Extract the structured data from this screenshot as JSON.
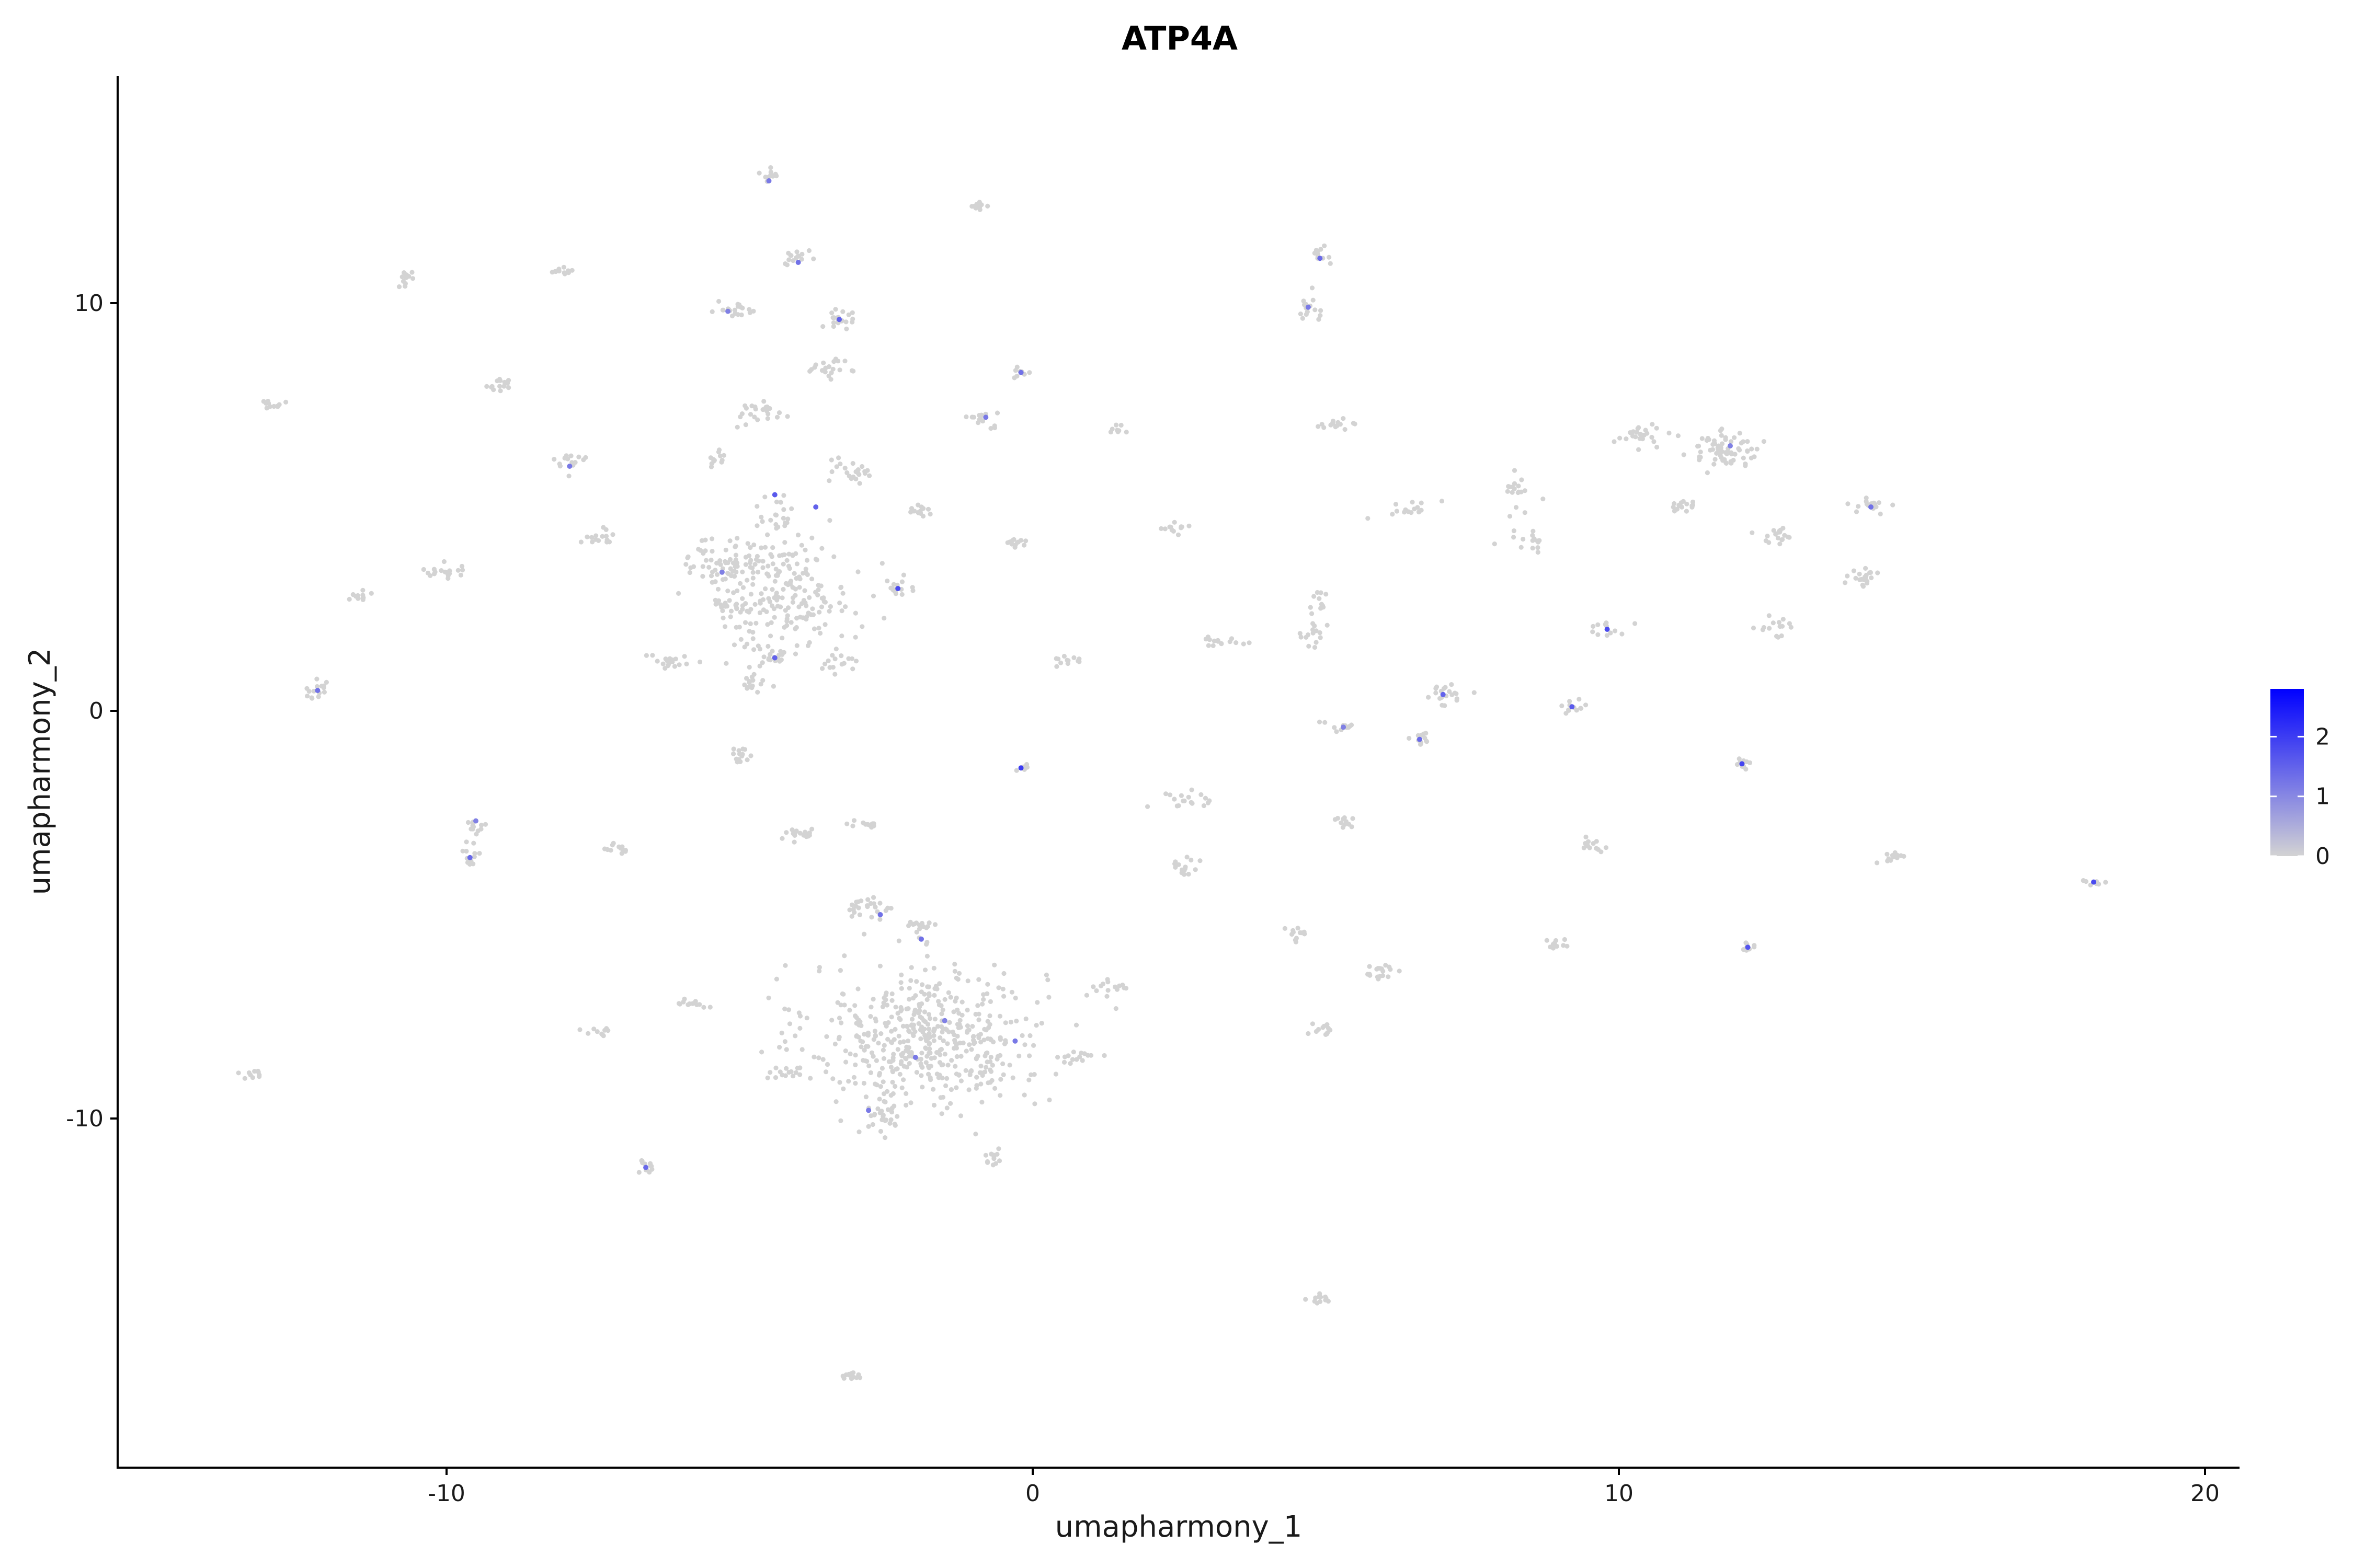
{
  "chart_data": {
    "type": "scatter",
    "title": "ATP4A",
    "xlabel": "umapharmony_1",
    "ylabel": "umapharmony_2",
    "xlim": [
      -15.5,
      20.7
    ],
    "ylim": [
      -18.6,
      15.5
    ],
    "x_ticks": [
      -10,
      0,
      10,
      20
    ],
    "x_tick_labels": [
      "-10",
      "0",
      "10",
      "20"
    ],
    "y_ticks": [
      10,
      0,
      -10
    ],
    "y_tick_labels": [
      "10",
      "0",
      "-10"
    ],
    "grid": false,
    "legend_placement": "right",
    "colorbar": {
      "min": 0,
      "max": 2.8,
      "ticks": [
        0,
        1,
        2
      ],
      "tick_labels": [
        "0",
        "1",
        "2"
      ],
      "low_color": "#d3d3d3",
      "high_color": "#0000ff"
    },
    "clusters": [
      {
        "x": -1.8,
        "y": -8.0,
        "sx": 1.0,
        "sy": 0.9,
        "n": 500
      },
      {
        "x": -4.3,
        "y": 2.9,
        "sx": 0.6,
        "sy": 0.7,
        "n": 220
      },
      {
        "x": -5.3,
        "y": 3.7,
        "sx": 0.3,
        "sy": 0.3,
        "n": 50
      },
      {
        "x": 11.8,
        "y": 6.4,
        "sx": 0.3,
        "sy": 0.2,
        "n": 70
      },
      {
        "x": -2.5,
        "y": -10.0,
        "sx": 0.2,
        "sy": 0.2,
        "n": 25
      },
      {
        "x": -4.5,
        "y": 13.1,
        "sx": 0.08,
        "sy": 0.08,
        "n": 12
      },
      {
        "x": -0.9,
        "y": 12.4,
        "sx": 0.1,
        "sy": 0.06,
        "n": 12
      },
      {
        "x": -10.7,
        "y": 10.6,
        "sx": 0.1,
        "sy": 0.1,
        "n": 12
      },
      {
        "x": -8.0,
        "y": 10.8,
        "sx": 0.1,
        "sy": 0.06,
        "n": 12
      },
      {
        "x": -4.0,
        "y": 11.1,
        "sx": 0.1,
        "sy": 0.1,
        "n": 15
      },
      {
        "x": -5.1,
        "y": 9.8,
        "sx": 0.2,
        "sy": 0.1,
        "n": 20
      },
      {
        "x": -3.3,
        "y": 9.6,
        "sx": 0.15,
        "sy": 0.15,
        "n": 20
      },
      {
        "x": -3.5,
        "y": 8.4,
        "sx": 0.15,
        "sy": 0.1,
        "n": 20
      },
      {
        "x": 4.9,
        "y": 11.2,
        "sx": 0.1,
        "sy": 0.1,
        "n": 12
      },
      {
        "x": 4.7,
        "y": 9.9,
        "sx": 0.1,
        "sy": 0.2,
        "n": 15
      },
      {
        "x": -13.0,
        "y": 7.5,
        "sx": 0.1,
        "sy": 0.08,
        "n": 12
      },
      {
        "x": -9.1,
        "y": 8.0,
        "sx": 0.15,
        "sy": 0.1,
        "n": 15
      },
      {
        "x": -4.6,
        "y": 7.3,
        "sx": 0.2,
        "sy": 0.15,
        "n": 25
      },
      {
        "x": -0.2,
        "y": 8.3,
        "sx": 0.08,
        "sy": 0.06,
        "n": 8
      },
      {
        "x": -0.8,
        "y": 7.2,
        "sx": 0.15,
        "sy": 0.1,
        "n": 15
      },
      {
        "x": 1.4,
        "y": 6.9,
        "sx": 0.1,
        "sy": 0.05,
        "n": 8
      },
      {
        "x": 5.2,
        "y": 7.0,
        "sx": 0.15,
        "sy": 0.1,
        "n": 15
      },
      {
        "x": -7.9,
        "y": 6.1,
        "sx": 0.15,
        "sy": 0.15,
        "n": 15
      },
      {
        "x": -5.4,
        "y": 6.2,
        "sx": 0.1,
        "sy": 0.15,
        "n": 12
      },
      {
        "x": -3.1,
        "y": 5.9,
        "sx": 0.15,
        "sy": 0.15,
        "n": 25
      },
      {
        "x": -1.9,
        "y": 4.9,
        "sx": 0.15,
        "sy": 0.1,
        "n": 15
      },
      {
        "x": -4.4,
        "y": 4.8,
        "sx": 0.15,
        "sy": 0.2,
        "n": 20
      },
      {
        "x": -7.3,
        "y": 4.3,
        "sx": 0.2,
        "sy": 0.1,
        "n": 15
      },
      {
        "x": -10.0,
        "y": 3.4,
        "sx": 0.2,
        "sy": 0.1,
        "n": 18
      },
      {
        "x": -11.5,
        "y": 2.8,
        "sx": 0.15,
        "sy": 0.08,
        "n": 12
      },
      {
        "x": -12.2,
        "y": 0.5,
        "sx": 0.1,
        "sy": 0.12,
        "n": 15
      },
      {
        "x": -6.2,
        "y": 1.2,
        "sx": 0.2,
        "sy": 0.1,
        "n": 20
      },
      {
        "x": -5.2,
        "y": 2.6,
        "sx": 0.15,
        "sy": 0.1,
        "n": 15
      },
      {
        "x": -4.4,
        "y": 1.3,
        "sx": 0.15,
        "sy": 0.1,
        "n": 20
      },
      {
        "x": -3.3,
        "y": 1.2,
        "sx": 0.15,
        "sy": 0.1,
        "n": 15
      },
      {
        "x": -4.8,
        "y": 0.6,
        "sx": 0.1,
        "sy": 0.15,
        "n": 15
      },
      {
        "x": -2.3,
        "y": 3.0,
        "sx": 0.15,
        "sy": 0.1,
        "n": 15
      },
      {
        "x": -0.3,
        "y": 4.1,
        "sx": 0.15,
        "sy": 0.08,
        "n": 12
      },
      {
        "x": 2.4,
        "y": 4.5,
        "sx": 0.15,
        "sy": 0.06,
        "n": 12
      },
      {
        "x": 0.7,
        "y": 1.2,
        "sx": 0.15,
        "sy": 0.08,
        "n": 12
      },
      {
        "x": -0.2,
        "y": -1.4,
        "sx": 0.06,
        "sy": 0.06,
        "n": 6
      },
      {
        "x": -5.0,
        "y": -1.1,
        "sx": 0.15,
        "sy": 0.1,
        "n": 15
      },
      {
        "x": 3.2,
        "y": 1.7,
        "sx": 0.2,
        "sy": 0.08,
        "n": 15
      },
      {
        "x": 4.9,
        "y": 2.7,
        "sx": 0.1,
        "sy": 0.15,
        "n": 12
      },
      {
        "x": 4.8,
        "y": 1.9,
        "sx": 0.15,
        "sy": 0.15,
        "n": 15
      },
      {
        "x": 6.5,
        "y": 5.0,
        "sx": 0.2,
        "sy": 0.1,
        "n": 15
      },
      {
        "x": 8.3,
        "y": 5.4,
        "sx": 0.15,
        "sy": 0.25,
        "n": 18
      },
      {
        "x": 8.5,
        "y": 4.2,
        "sx": 0.15,
        "sy": 0.12,
        "n": 15
      },
      {
        "x": 10.4,
        "y": 6.7,
        "sx": 0.2,
        "sy": 0.12,
        "n": 25
      },
      {
        "x": 11.0,
        "y": 5.0,
        "sx": 0.15,
        "sy": 0.1,
        "n": 15
      },
      {
        "x": 12.7,
        "y": 4.3,
        "sx": 0.2,
        "sy": 0.12,
        "n": 18
      },
      {
        "x": 14.3,
        "y": 5.0,
        "sx": 0.15,
        "sy": 0.12,
        "n": 15
      },
      {
        "x": 14.2,
        "y": 3.3,
        "sx": 0.15,
        "sy": 0.12,
        "n": 20
      },
      {
        "x": 12.7,
        "y": 2.1,
        "sx": 0.15,
        "sy": 0.15,
        "n": 15
      },
      {
        "x": 9.8,
        "y": 2.0,
        "sx": 0.15,
        "sy": 0.1,
        "n": 12
      },
      {
        "x": 7.0,
        "y": 0.4,
        "sx": 0.2,
        "sy": 0.15,
        "n": 20
      },
      {
        "x": 6.6,
        "y": -0.7,
        "sx": 0.15,
        "sy": 0.1,
        "n": 12
      },
      {
        "x": 5.3,
        "y": -0.4,
        "sx": 0.15,
        "sy": 0.08,
        "n": 12
      },
      {
        "x": 9.2,
        "y": 0.1,
        "sx": 0.1,
        "sy": 0.1,
        "n": 12
      },
      {
        "x": 12.1,
        "y": -1.3,
        "sx": 0.1,
        "sy": 0.1,
        "n": 10
      },
      {
        "x": -9.5,
        "y": -2.8,
        "sx": 0.1,
        "sy": 0.1,
        "n": 12
      },
      {
        "x": -9.6,
        "y": -3.6,
        "sx": 0.1,
        "sy": 0.15,
        "n": 12
      },
      {
        "x": -7.1,
        "y": -3.4,
        "sx": 0.12,
        "sy": 0.08,
        "n": 12
      },
      {
        "x": -4.0,
        "y": -3.0,
        "sx": 0.2,
        "sy": 0.1,
        "n": 18
      },
      {
        "x": -2.8,
        "y": -2.8,
        "sx": 0.2,
        "sy": 0.06,
        "n": 12
      },
      {
        "x": 2.6,
        "y": -2.2,
        "sx": 0.2,
        "sy": 0.15,
        "n": 18
      },
      {
        "x": 2.6,
        "y": -3.8,
        "sx": 0.15,
        "sy": 0.2,
        "n": 15
      },
      {
        "x": 5.3,
        "y": -2.7,
        "sx": 0.1,
        "sy": 0.1,
        "n": 12
      },
      {
        "x": 9.5,
        "y": -3.3,
        "sx": 0.12,
        "sy": 0.1,
        "n": 12
      },
      {
        "x": 14.7,
        "y": -3.6,
        "sx": 0.15,
        "sy": 0.08,
        "n": 12
      },
      {
        "x": 18.1,
        "y": -4.2,
        "sx": 0.1,
        "sy": 0.06,
        "n": 10
      },
      {
        "x": -2.8,
        "y": -4.9,
        "sx": 0.2,
        "sy": 0.15,
        "n": 25
      },
      {
        "x": -1.9,
        "y": -5.3,
        "sx": 0.15,
        "sy": 0.12,
        "n": 15
      },
      {
        "x": 4.5,
        "y": -5.5,
        "sx": 0.15,
        "sy": 0.1,
        "n": 12
      },
      {
        "x": 5.9,
        "y": -6.4,
        "sx": 0.2,
        "sy": 0.12,
        "n": 18
      },
      {
        "x": 9.0,
        "y": -5.7,
        "sx": 0.1,
        "sy": 0.1,
        "n": 10
      },
      {
        "x": 12.2,
        "y": -5.8,
        "sx": 0.1,
        "sy": 0.08,
        "n": 8
      },
      {
        "x": 1.3,
        "y": -6.8,
        "sx": 0.2,
        "sy": 0.1,
        "n": 15
      },
      {
        "x": 0.7,
        "y": -8.5,
        "sx": 0.2,
        "sy": 0.1,
        "n": 15
      },
      {
        "x": 4.9,
        "y": -7.8,
        "sx": 0.12,
        "sy": 0.1,
        "n": 12
      },
      {
        "x": -5.9,
        "y": -7.2,
        "sx": 0.15,
        "sy": 0.06,
        "n": 12
      },
      {
        "x": -7.4,
        "y": -7.9,
        "sx": 0.12,
        "sy": 0.06,
        "n": 10
      },
      {
        "x": -13.3,
        "y": -8.9,
        "sx": 0.1,
        "sy": 0.05,
        "n": 10
      },
      {
        "x": -4.1,
        "y": -8.9,
        "sx": 0.2,
        "sy": 0.08,
        "n": 15
      },
      {
        "x": -6.6,
        "y": -11.2,
        "sx": 0.1,
        "sy": 0.1,
        "n": 12
      },
      {
        "x": -0.7,
        "y": -11.0,
        "sx": 0.12,
        "sy": 0.1,
        "n": 12
      },
      {
        "x": 4.8,
        "y": -14.4,
        "sx": 0.15,
        "sy": 0.08,
        "n": 12
      },
      {
        "x": -3.1,
        "y": -16.3,
        "sx": 0.12,
        "sy": 0.08,
        "n": 12
      }
    ],
    "expressing_cells": [
      {
        "x": -4.5,
        "y": 13.0,
        "value": 1.2
      },
      {
        "x": -4.0,
        "y": 11.0,
        "value": 1.3
      },
      {
        "x": -3.3,
        "y": 9.6,
        "value": 1.5
      },
      {
        "x": 4.9,
        "y": 11.1,
        "value": 1.4
      },
      {
        "x": -0.2,
        "y": 8.3,
        "value": 1.3
      },
      {
        "x": -0.8,
        "y": 7.2,
        "value": 1.2
      },
      {
        "x": -4.4,
        "y": 5.3,
        "value": 1.6
      },
      {
        "x": -3.7,
        "y": 5.0,
        "value": 1.5
      },
      {
        "x": -7.9,
        "y": 6.0,
        "value": 1.2
      },
      {
        "x": -2.3,
        "y": 3.0,
        "value": 1.8
      },
      {
        "x": -4.4,
        "y": 1.3,
        "value": 1.5
      },
      {
        "x": -5.3,
        "y": 3.4,
        "value": 1.1
      },
      {
        "x": -12.2,
        "y": 0.5,
        "value": 1.3
      },
      {
        "x": -9.6,
        "y": -3.6,
        "value": 1.4
      },
      {
        "x": -9.5,
        "y": -2.7,
        "value": 1.1
      },
      {
        "x": -0.2,
        "y": -1.4,
        "value": 2.0
      },
      {
        "x": 9.8,
        "y": 2.0,
        "value": 1.8
      },
      {
        "x": 9.2,
        "y": 0.1,
        "value": 1.6
      },
      {
        "x": 12.1,
        "y": -1.3,
        "value": 1.9
      },
      {
        "x": 7.0,
        "y": 0.4,
        "value": 1.5
      },
      {
        "x": 6.6,
        "y": -0.7,
        "value": 1.4
      },
      {
        "x": 18.1,
        "y": -4.2,
        "value": 1.8
      },
      {
        "x": 12.2,
        "y": -5.8,
        "value": 1.7
      },
      {
        "x": -6.6,
        "y": -11.2,
        "value": 1.4
      },
      {
        "x": -2.6,
        "y": -5.0,
        "value": 1.3
      },
      {
        "x": -2.0,
        "y": -8.5,
        "value": 1.2
      },
      {
        "x": -1.5,
        "y": -7.6,
        "value": 1.1
      },
      {
        "x": -0.3,
        "y": -8.1,
        "value": 1.2
      },
      {
        "x": 11.9,
        "y": 6.5,
        "value": 1.1
      },
      {
        "x": 14.3,
        "y": 5.0,
        "value": 1.3
      },
      {
        "x": 5.3,
        "y": -0.4,
        "value": 1.1
      },
      {
        "x": -2.8,
        "y": -9.8,
        "value": 1.2
      },
      {
        "x": -5.2,
        "y": 9.8,
        "value": 1.1
      },
      {
        "x": 4.7,
        "y": 9.9,
        "value": 1.2
      },
      {
        "x": -1.9,
        "y": -5.6,
        "value": 1.3
      }
    ]
  }
}
